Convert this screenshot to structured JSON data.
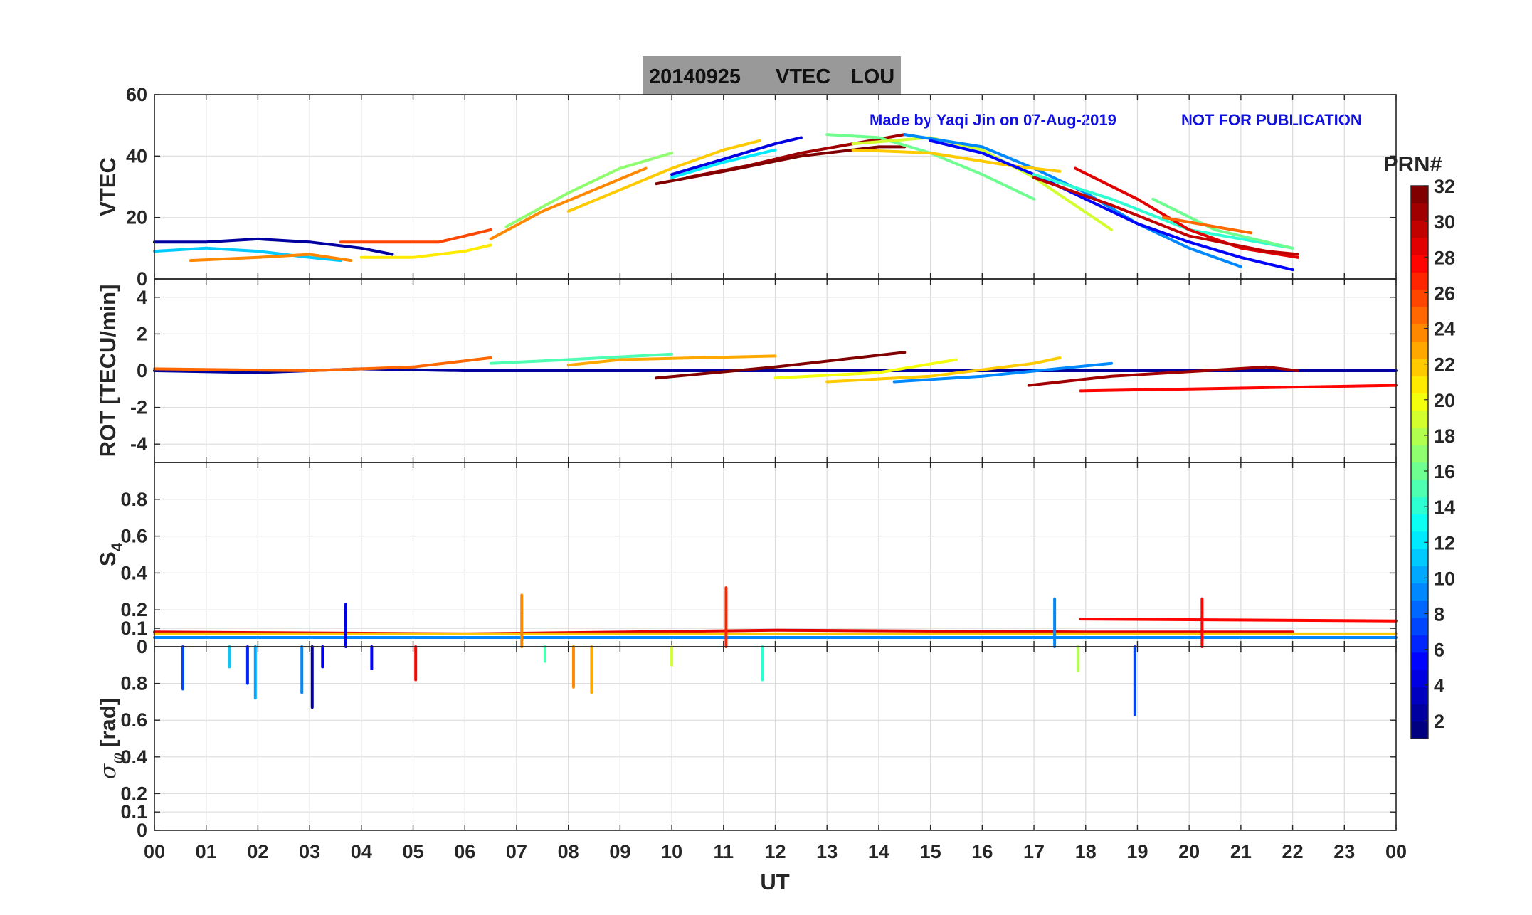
{
  "title": {
    "date": "20140925",
    "quantity": "VTEC",
    "station": "LOU"
  },
  "credit": {
    "made_by": "Made by Yaqi Jin on 07-Aug-2019",
    "notice": "NOT FOR PUBLICATION"
  },
  "colorbar": {
    "title": "PRN#",
    "ticks": [
      "2",
      "4",
      "6",
      "8",
      "10",
      "12",
      "14",
      "16",
      "18",
      "20",
      "22",
      "24",
      "26",
      "28",
      "30",
      "32"
    ],
    "range": [
      1,
      32
    ],
    "colormap": "jet"
  },
  "chart_data": [
    {
      "type": "line",
      "panel": "vtec",
      "ylabel": "VTEC",
      "ylim": [
        0,
        60
      ],
      "yticks": [
        "0",
        "20",
        "40",
        "60"
      ],
      "xlim": [
        0,
        24
      ],
      "grid": true,
      "series": [
        {
          "prn": 2,
          "x": [
            0,
            1,
            2,
            3,
            4,
            4.6
          ],
          "y": [
            12,
            12,
            13,
            12,
            10,
            8
          ]
        },
        {
          "prn": 11,
          "x": [
            0,
            1,
            2,
            3,
            3.6
          ],
          "y": [
            9,
            10,
            9,
            7,
            6
          ]
        },
        {
          "prn": 24,
          "x": [
            0.7,
            2,
            3,
            3.8
          ],
          "y": [
            6,
            7,
            8,
            6
          ]
        },
        {
          "prn": 26,
          "x": [
            3.6,
            4.5,
            5.5,
            6.5
          ],
          "y": [
            12,
            12,
            12,
            16
          ]
        },
        {
          "prn": 21,
          "x": [
            4,
            5,
            6,
            6.5
          ],
          "y": [
            7,
            7,
            9,
            11
          ]
        },
        {
          "prn": 17,
          "x": [
            6.8,
            8,
            9,
            10
          ],
          "y": [
            17,
            28,
            36,
            41
          ]
        },
        {
          "prn": 24,
          "x": [
            6.5,
            7.5,
            8.5,
            9.5
          ],
          "y": [
            13,
            22,
            29,
            36
          ]
        },
        {
          "prn": 22,
          "x": [
            8,
            9,
            10,
            11,
            11.7
          ],
          "y": [
            22,
            29,
            36,
            42,
            45
          ]
        },
        {
          "prn": 4,
          "x": [
            10,
            11,
            12,
            12.5
          ],
          "y": [
            34,
            39,
            44,
            46
          ]
        },
        {
          "prn": 12,
          "x": [
            10,
            11,
            12
          ],
          "y": [
            33,
            38,
            42
          ]
        },
        {
          "prn": 31,
          "x": [
            10.3,
            11.5,
            12.5,
            13.5,
            14.5
          ],
          "y": [
            33,
            37,
            41,
            44,
            47
          ]
        },
        {
          "prn": 32,
          "x": [
            9.7,
            11,
            12.5,
            14,
            14.5
          ],
          "y": [
            31,
            35,
            40,
            43,
            43
          ]
        },
        {
          "prn": 16,
          "x": [
            13,
            14,
            15,
            16,
            17
          ],
          "y": [
            47,
            46,
            41,
            34,
            26
          ]
        },
        {
          "prn": 19,
          "x": [
            13.5,
            15,
            16,
            17,
            18.5
          ],
          "y": [
            44,
            46,
            42,
            33,
            16
          ]
        },
        {
          "prn": 9,
          "x": [
            14.5,
            16,
            17,
            18,
            19,
            20,
            21
          ],
          "y": [
            47,
            43,
            36,
            28,
            18,
            10,
            4
          ]
        },
        {
          "prn": 22,
          "x": [
            13.5,
            15,
            16.5,
            17.5
          ],
          "y": [
            42,
            41,
            37,
            35
          ]
        },
        {
          "prn": 5,
          "x": [
            15,
            16,
            17,
            18,
            19,
            20,
            21,
            22
          ],
          "y": [
            45,
            41,
            34,
            26,
            18,
            12,
            7,
            3
          ]
        },
        {
          "prn": 14,
          "x": [
            17,
            18.5,
            20,
            22
          ],
          "y": [
            34,
            26,
            16,
            10
          ]
        },
        {
          "prn": 29,
          "x": [
            17.8,
            19,
            20,
            21,
            22.1
          ],
          "y": [
            36,
            26,
            16,
            10,
            7
          ]
        },
        {
          "prn": 30,
          "x": [
            17,
            18.5,
            20,
            21.5,
            22.1
          ],
          "y": [
            33,
            24,
            14,
            9,
            8
          ]
        },
        {
          "prn": 16,
          "x": [
            19.3,
            20.5,
            22
          ],
          "y": [
            26,
            16,
            10
          ]
        },
        {
          "prn": 25,
          "x": [
            19.5,
            20.5,
            21.2
          ],
          "y": [
            20,
            17,
            15
          ]
        }
      ]
    },
    {
      "type": "line",
      "panel": "rot",
      "ylabel": "ROT [TECU/min]",
      "ylim": [
        -5,
        5
      ],
      "yticks": [
        "-4",
        "-2",
        "0",
        "2",
        "4"
      ],
      "xlim": [
        0,
        24
      ],
      "grid": true,
      "series": [
        {
          "prn": 2,
          "x": [
            0,
            2,
            4,
            6,
            24
          ],
          "y": [
            0,
            -0.1,
            0.1,
            0,
            0
          ]
        },
        {
          "prn": 25,
          "x": [
            0,
            3,
            5,
            6.5
          ],
          "y": [
            0.1,
            0,
            0.2,
            0.7
          ]
        },
        {
          "prn": 15,
          "x": [
            6.5,
            8,
            10
          ],
          "y": [
            0.4,
            0.6,
            0.9
          ]
        },
        {
          "prn": 23,
          "x": [
            8,
            9,
            10.5,
            12
          ],
          "y": [
            0.3,
            0.6,
            0.7,
            0.8
          ]
        },
        {
          "prn": 32,
          "x": [
            9.7,
            12,
            14.5
          ],
          "y": [
            -0.4,
            0.2,
            1.0
          ]
        },
        {
          "prn": 20,
          "x": [
            12,
            14,
            15.5
          ],
          "y": [
            -0.4,
            -0.1,
            0.6
          ]
        },
        {
          "prn": 22,
          "x": [
            13,
            15,
            17,
            17.5
          ],
          "y": [
            -0.6,
            -0.3,
            0.4,
            0.7
          ]
        },
        {
          "prn": 9,
          "x": [
            14.3,
            16,
            18.5
          ],
          "y": [
            -0.6,
            -0.3,
            0.4
          ]
        },
        {
          "prn": 31,
          "x": [
            16.9,
            18.5,
            21.5,
            22.1
          ],
          "y": [
            -0.8,
            -0.3,
            0.2,
            0
          ]
        },
        {
          "prn": 28,
          "x": [
            17.9,
            24
          ],
          "y": [
            -1.1,
            -0.8
          ]
        }
      ]
    },
    {
      "type": "line",
      "panel": "s4",
      "ylabel": "S4",
      "ylim": [
        0,
        1
      ],
      "yticks": [
        "0",
        "0.1",
        "0.2",
        "0.4",
        "0.6",
        "0.8"
      ],
      "xlim": [
        0,
        24
      ],
      "grid": true,
      "series": [
        {
          "prn": 9,
          "x": [
            0,
            24
          ],
          "y": [
            0.05,
            0.05
          ]
        },
        {
          "prn": 28,
          "x": [
            17.9,
            24
          ],
          "y": [
            0.15,
            0.14
          ]
        },
        {
          "prn": 29,
          "x": [
            0,
            6,
            12,
            18,
            22
          ],
          "y": [
            0.08,
            0.07,
            0.09,
            0.08,
            0.08
          ]
        },
        {
          "prn": 22,
          "x": [
            0,
            24
          ],
          "y": [
            0.07,
            0.07
          ]
        }
      ],
      "spikes": [
        {
          "prn": 4,
          "x": 3.7,
          "y": 0.23
        },
        {
          "prn": 24,
          "x": 7.1,
          "y": 0.28
        },
        {
          "prn": 27,
          "x": 11.05,
          "y": 0.32
        },
        {
          "prn": 9,
          "x": 17.4,
          "y": 0.26
        },
        {
          "prn": 28,
          "x": 20.25,
          "y": 0.26
        }
      ]
    },
    {
      "type": "line",
      "panel": "sigma_phi",
      "ylabel": "σ φ [rad]",
      "ylim": [
        0,
        1
      ],
      "yticks": [
        "0",
        "0.1",
        "0.2",
        "0.4",
        "0.6",
        "0.8"
      ],
      "xlim": [
        0,
        24
      ],
      "xlabel": "UT",
      "xticks": [
        "00",
        "01",
        "02",
        "03",
        "04",
        "05",
        "06",
        "07",
        "08",
        "09",
        "10",
        "11",
        "12",
        "13",
        "14",
        "15",
        "16",
        "17",
        "18",
        "19",
        "20",
        "21",
        "22",
        "23",
        "00"
      ],
      "grid": true,
      "spikes": [
        {
          "prn": 7,
          "x": 0.55,
          "y": 0.77
        },
        {
          "prn": 11,
          "x": 1.45,
          "y": 0.89
        },
        {
          "prn": 6,
          "x": 1.8,
          "y": 0.8
        },
        {
          "prn": 10,
          "x": 1.95,
          "y": 0.72
        },
        {
          "prn": 9,
          "x": 2.85,
          "y": 0.75
        },
        {
          "prn": 2,
          "x": 3.05,
          "y": 0.67
        },
        {
          "prn": 4,
          "x": 3.25,
          "y": 0.89
        },
        {
          "prn": 5,
          "x": 4.2,
          "y": 0.88
        },
        {
          "prn": 28,
          "x": 5.05,
          "y": 0.82
        },
        {
          "prn": 15,
          "x": 7.55,
          "y": 0.92
        },
        {
          "prn": 24,
          "x": 8.1,
          "y": 0.78
        },
        {
          "prn": 23,
          "x": 8.45,
          "y": 0.75
        },
        {
          "prn": 19,
          "x": 10.0,
          "y": 0.9
        },
        {
          "prn": 14,
          "x": 11.75,
          "y": 0.82
        },
        {
          "prn": 18,
          "x": 17.85,
          "y": 0.87
        },
        {
          "prn": 7,
          "x": 18.95,
          "y": 0.63
        }
      ]
    }
  ]
}
